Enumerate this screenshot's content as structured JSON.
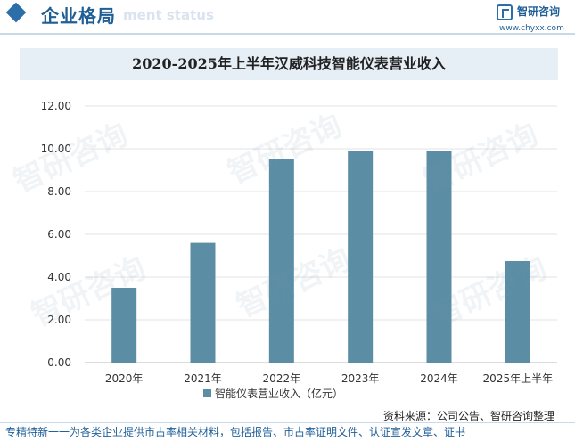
{
  "header": {
    "section_title": "企业格局",
    "ghost_text": "ment status",
    "brand_name": "智研咨询",
    "brand_url": "www.chyxx.com",
    "logo_icon": "chyxx-logo-icon"
  },
  "watermark": "智研咨询",
  "chart_data": {
    "type": "bar",
    "title": "2020-2025年上半年汉威科技智能仪表营业收入",
    "categories": [
      "2020年",
      "2021年",
      "2022年",
      "2023年",
      "2024年",
      "2025年上半年"
    ],
    "series": [
      {
        "name": "智能仪表营业收入（亿元）",
        "values": [
          3.5,
          5.6,
          9.5,
          9.9,
          9.9,
          4.75
        ],
        "color": "#5b8ea5"
      }
    ],
    "y_ticks": [
      "0.00",
      "2.00",
      "4.00",
      "6.00",
      "8.00",
      "10.00",
      "12.00"
    ],
    "ylim": [
      0,
      12
    ],
    "grid": true,
    "legend_position": "bottom"
  },
  "footer": {
    "source": "资料来源：公司公告、智研咨询整理",
    "slogan": "专精特新一一为各类企业提供市占率相关材料，包括报告、市占率证明文件、认证宣发文章、证书"
  }
}
